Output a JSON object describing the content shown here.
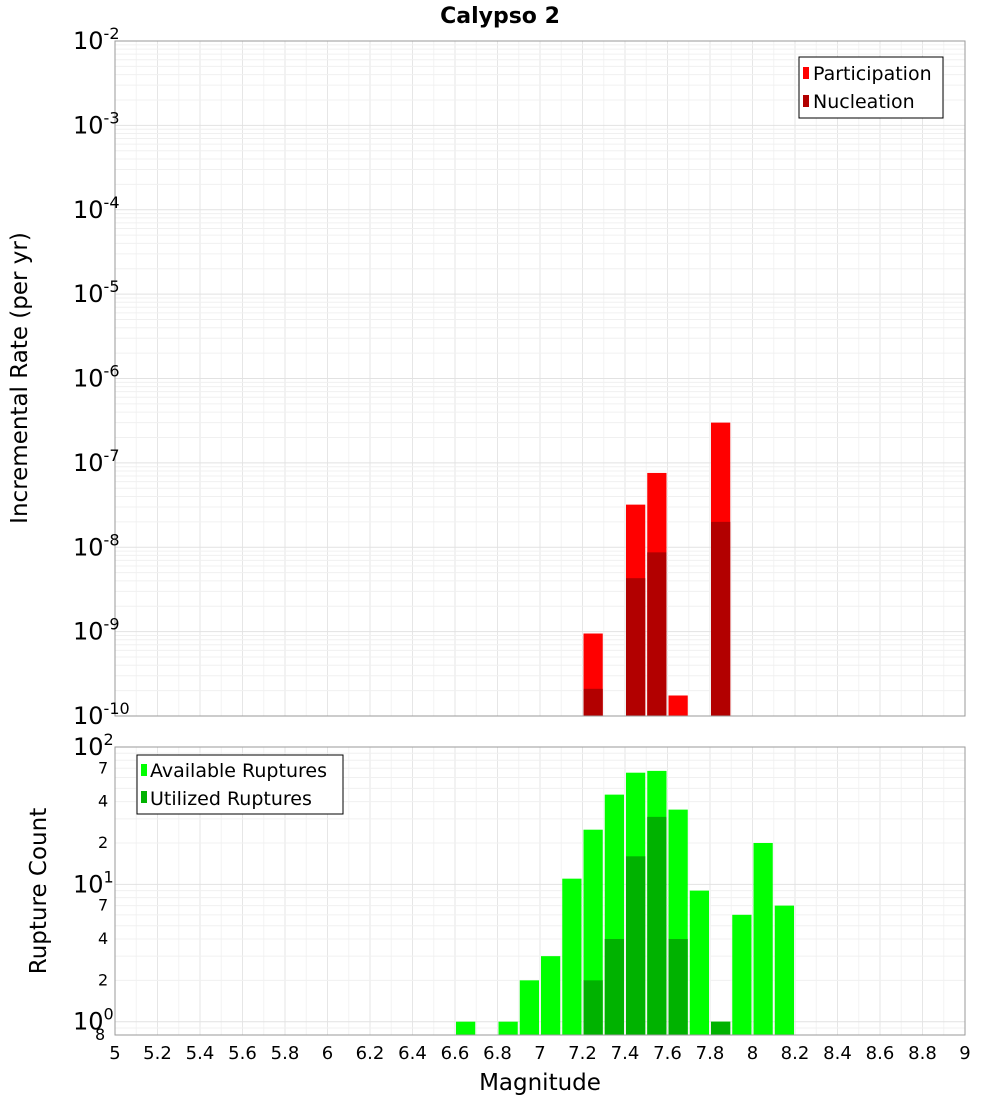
{
  "chart_data": [
    {
      "type": "bar",
      "title": "Calypso 2",
      "ylabel": "Incremental Rate (per yr)",
      "xlabel": "",
      "yscale": "log",
      "ylim": [
        1e-10,
        0.01
      ],
      "xlim": [
        5,
        9
      ],
      "bin_width": 0.1,
      "legend_position": "top-right",
      "y_ticks": [
        {
          "base": "10",
          "exp": "-10"
        },
        {
          "base": "10",
          "exp": "-9"
        },
        {
          "base": "10",
          "exp": "-8"
        },
        {
          "base": "10",
          "exp": "-7"
        },
        {
          "base": "10",
          "exp": "-6"
        },
        {
          "base": "10",
          "exp": "-5"
        },
        {
          "base": "10",
          "exp": "-4"
        },
        {
          "base": "10",
          "exp": "-3"
        },
        {
          "base": "10",
          "exp": "-2"
        }
      ],
      "series": [
        {
          "name": "Participation",
          "color": "#ff0000",
          "points": [
            {
              "x": 7.25,
              "y": 9.5e-10
            },
            {
              "x": 7.45,
              "y": 3.2e-08
            },
            {
              "x": 7.55,
              "y": 7.6e-08
            },
            {
              "x": 7.65,
              "y": 1.75e-10
            },
            {
              "x": 7.85,
              "y": 3e-07
            }
          ]
        },
        {
          "name": "Nucleation",
          "color": "#b20000",
          "points": [
            {
              "x": 7.25,
              "y": 2.1e-10
            },
            {
              "x": 7.45,
              "y": 4.3e-09
            },
            {
              "x": 7.55,
              "y": 8.7e-09
            },
            {
              "x": 7.85,
              "y": 2e-08
            }
          ]
        }
      ]
    },
    {
      "type": "bar",
      "title": "",
      "ylabel": "Rupture Count",
      "xlabel": "Magnitude",
      "yscale": "log",
      "ylim": [
        0.8,
        100
      ],
      "xlim": [
        5,
        9
      ],
      "bin_width": 0.1,
      "legend_position": "top-left",
      "x_ticks": [
        "5",
        "5.2",
        "5.4",
        "5.6",
        "5.8",
        "6",
        "6.2",
        "6.4",
        "6.6",
        "6.8",
        "7",
        "7.2",
        "7.4",
        "7.6",
        "7.8",
        "8",
        "8.2",
        "8.4",
        "8.6",
        "8.8",
        "9"
      ],
      "y_major_ticks": [
        {
          "base": "10",
          "exp": "0"
        },
        {
          "base": "10",
          "exp": "1"
        },
        {
          "base": "10",
          "exp": "2"
        }
      ],
      "y_minor_ticks": [
        {
          "value": 0.8,
          "label": "8"
        },
        {
          "value": 2,
          "label": "2"
        },
        {
          "value": 4,
          "label": "4"
        },
        {
          "value": 7,
          "label": "7"
        },
        {
          "value": 20,
          "label": "2"
        },
        {
          "value": 40,
          "label": "4"
        },
        {
          "value": 70,
          "label": "7"
        }
      ],
      "series": [
        {
          "name": "Available Ruptures",
          "color": "#00ff00",
          "points": [
            {
              "x": 6.65,
              "y": 1
            },
            {
              "x": 6.85,
              "y": 1
            },
            {
              "x": 6.95,
              "y": 2
            },
            {
              "x": 7.05,
              "y": 3
            },
            {
              "x": 7.15,
              "y": 11
            },
            {
              "x": 7.25,
              "y": 25
            },
            {
              "x": 7.35,
              "y": 45
            },
            {
              "x": 7.45,
              "y": 65
            },
            {
              "x": 7.55,
              "y": 67
            },
            {
              "x": 7.65,
              "y": 35
            },
            {
              "x": 7.75,
              "y": 9
            },
            {
              "x": 7.85,
              "y": 1
            },
            {
              "x": 7.95,
              "y": 6
            },
            {
              "x": 8.05,
              "y": 20
            },
            {
              "x": 8.15,
              "y": 7
            }
          ]
        },
        {
          "name": "Utilized Ruptures",
          "color": "#00b200",
          "points": [
            {
              "x": 7.25,
              "y": 2
            },
            {
              "x": 7.35,
              "y": 4
            },
            {
              "x": 7.45,
              "y": 16
            },
            {
              "x": 7.55,
              "y": 31
            },
            {
              "x": 7.65,
              "y": 4
            },
            {
              "x": 7.85,
              "y": 1
            }
          ]
        }
      ]
    }
  ]
}
